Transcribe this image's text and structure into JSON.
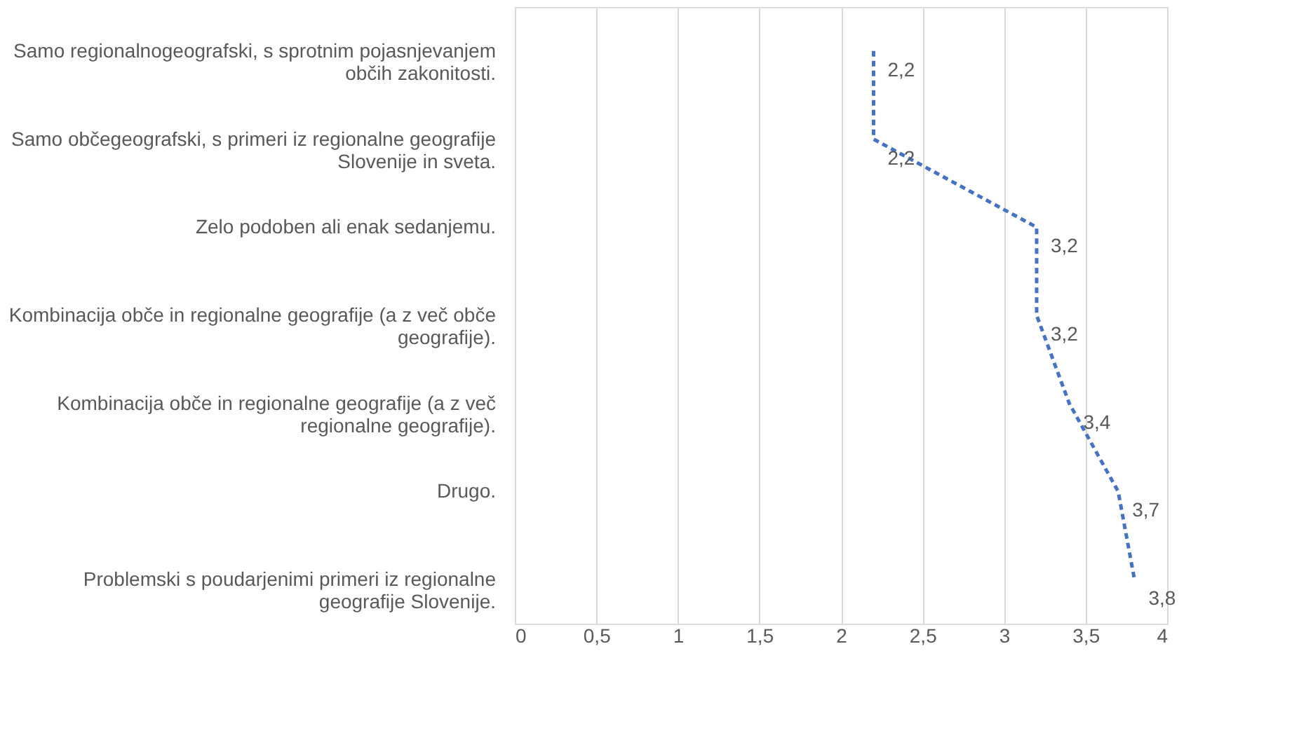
{
  "chart_data": {
    "type": "line",
    "orientation": "horizontal",
    "categories": [
      "Samo regionalnogeografski, s sprotnim pojasnjevanjem občih zakonitosti.",
      "Samo občegeografski, s primeri iz regionalne geografije Slovenije in sveta.",
      "Zelo podoben ali enak sedanjemu.",
      "Kombinacija obče in regionalne geografije (a z več obče geografije).",
      "Kombinacija obče in regionalne geografije (a z več regionalne geografije).",
      "Drugo.",
      "Problemski s poudarjenimi primeri iz regionalne geografije Slovenije."
    ],
    "series": [
      {
        "color": "#4472c4",
        "values": [
          2.2,
          2.2,
          3.2,
          3.2,
          3.4,
          3.7,
          3.8
        ],
        "value_labels": [
          "2,2",
          "2,2",
          "3,2",
          "3,2",
          "3,4",
          "3,7",
          "3,8"
        ]
      }
    ],
    "xlim": [
      0,
      4
    ],
    "xticks": [
      0,
      {
        "value": 0.5,
        "label": "0,5"
      },
      1,
      {
        "value": 1.5,
        "label": "1,5"
      },
      2,
      {
        "value": 2.5,
        "label": "2,5"
      },
      3,
      {
        "value": 3.5,
        "label": "3,5"
      },
      4
    ],
    "grid": "x",
    "marker": "none",
    "line_style": "dashed"
  }
}
